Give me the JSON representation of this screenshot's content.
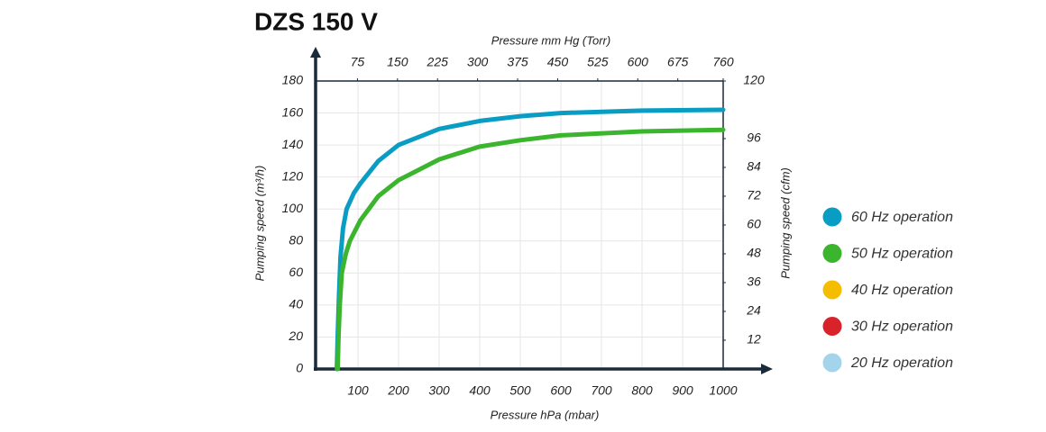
{
  "chart_data": {
    "type": "line",
    "title": "DZS 150 V",
    "x_label": "Pressure hPa (mbar)",
    "x2_label": "Pressure mm Hg (Torr)",
    "y_label": "Pumping speed (m³/h)",
    "y2_label": "Pumping speed (cfm)",
    "xlim": [
      0,
      1000
    ],
    "xticks": [
      100,
      200,
      300,
      400,
      500,
      600,
      700,
      800,
      900,
      1000
    ],
    "x2lim": [
      0,
      760
    ],
    "x2ticks": [
      75,
      150,
      225,
      300,
      375,
      450,
      525,
      600,
      675,
      760
    ],
    "ylim": [
      0,
      180
    ],
    "yticks": [
      0,
      20,
      40,
      60,
      80,
      100,
      120,
      140,
      160,
      180
    ],
    "y2lim": [
      0,
      120
    ],
    "y2ticks": [
      12,
      24,
      36,
      48,
      60,
      72,
      84,
      96,
      120
    ],
    "grid": true,
    "series": [
      {
        "name": "60 Hz operation",
        "color": "#0a9dc4",
        "x": [
          48,
          50,
          53,
          57,
          63,
          72,
          90,
          106,
          150,
          200,
          300,
          400,
          500,
          600,
          800,
          1000
        ],
        "values": [
          0,
          20,
          45,
          70,
          88,
          100,
          110,
          116,
          130,
          140,
          150,
          155,
          158,
          160,
          161.5,
          162
        ]
      },
      {
        "name": "50 Hz operation",
        "color": "#3ab52d",
        "x": [
          50,
          52,
          55,
          60,
          70,
          80,
          106,
          150,
          200,
          300,
          400,
          500,
          600,
          800,
          1000
        ],
        "values": [
          0,
          20,
          40,
          60,
          72,
          80,
          93,
          108,
          118,
          131,
          139,
          143,
          146,
          148.5,
          149.5
        ]
      },
      {
        "name": "40 Hz operation",
        "color": "#f5bd00",
        "x": [],
        "values": []
      },
      {
        "name": "30 Hz operation",
        "color": "#d9232b",
        "x": [],
        "values": []
      },
      {
        "name": "20 Hz operation",
        "color": "#a3d4ec",
        "x": [],
        "values": []
      }
    ]
  }
}
